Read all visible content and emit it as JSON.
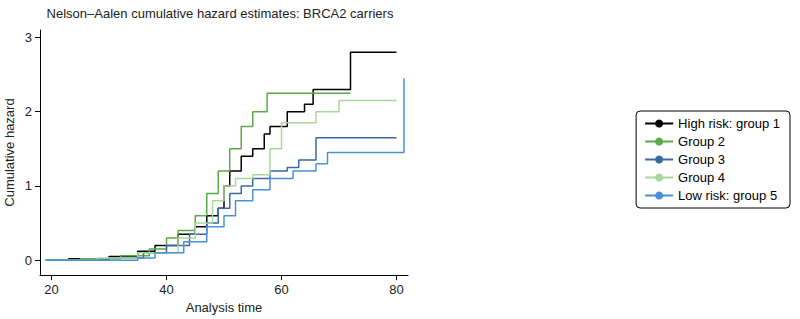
{
  "chart_data": {
    "type": "line",
    "line_style": "step",
    "title": "Nelson–Aalen cumulative hazard estimates: BRCA2 carriers",
    "x_label": "Analysis time",
    "y_label": "Cumulative hazard",
    "xlim": [
      18,
      82
    ],
    "xticks": [
      20,
      40,
      60,
      80
    ],
    "ylim": [
      -0.2,
      3.1
    ],
    "yticks": [
      0,
      1,
      2,
      3
    ],
    "grid": false,
    "legend": "right",
    "series": [
      {
        "name": "High risk: group 1",
        "color": "#000000",
        "x": [
          19,
          23,
          30,
          35,
          38,
          42,
          45,
          47,
          49,
          50,
          51,
          53,
          55,
          57,
          58,
          61,
          64,
          65.5,
          72,
          80
        ],
        "values": [
          0,
          0.02,
          0.05,
          0.12,
          0.2,
          0.35,
          0.45,
          0.6,
          0.7,
          1.0,
          1.2,
          1.4,
          1.5,
          1.7,
          1.8,
          2.0,
          2.1,
          2.3,
          2.8,
          2.8
        ]
      },
      {
        "name": "Group 2",
        "color": "#5aab46",
        "x": [
          19,
          25,
          32,
          37,
          40,
          42,
          45,
          47,
          49,
          51,
          53,
          55,
          57.5,
          72
        ],
        "values": [
          0,
          0.02,
          0.06,
          0.15,
          0.3,
          0.4,
          0.6,
          0.9,
          1.2,
          1.5,
          1.8,
          2.0,
          2.25,
          2.25
        ]
      },
      {
        "name": "Group 3",
        "color": "#3a6aa6",
        "x": [
          19,
          30,
          36,
          40,
          44,
          47,
          49,
          51,
          53,
          55,
          58,
          61,
          63,
          66,
          80
        ],
        "values": [
          0,
          0.03,
          0.1,
          0.2,
          0.35,
          0.5,
          0.7,
          0.9,
          1.0,
          1.1,
          1.2,
          1.25,
          1.35,
          1.65,
          1.65
        ]
      },
      {
        "name": "Group 4",
        "color": "#a8d89a",
        "x": [
          19,
          28,
          35,
          42,
          45,
          48,
          50,
          52,
          55,
          58,
          60,
          66,
          70,
          80
        ],
        "values": [
          0,
          0.03,
          0.1,
          0.3,
          0.5,
          0.8,
          1.0,
          1.1,
          1.15,
          1.5,
          1.85,
          2.0,
          2.15,
          2.15
        ]
      },
      {
        "name": "Low risk: group 5",
        "color": "#4a90d6",
        "x": [
          19,
          35,
          38,
          43,
          47,
          50,
          52,
          55,
          58,
          62,
          66,
          68,
          81,
          81.3
        ],
        "values": [
          0,
          0.03,
          0.1,
          0.25,
          0.45,
          0.6,
          0.8,
          0.95,
          1.1,
          1.2,
          1.3,
          1.45,
          1.45,
          2.45
        ]
      }
    ]
  }
}
